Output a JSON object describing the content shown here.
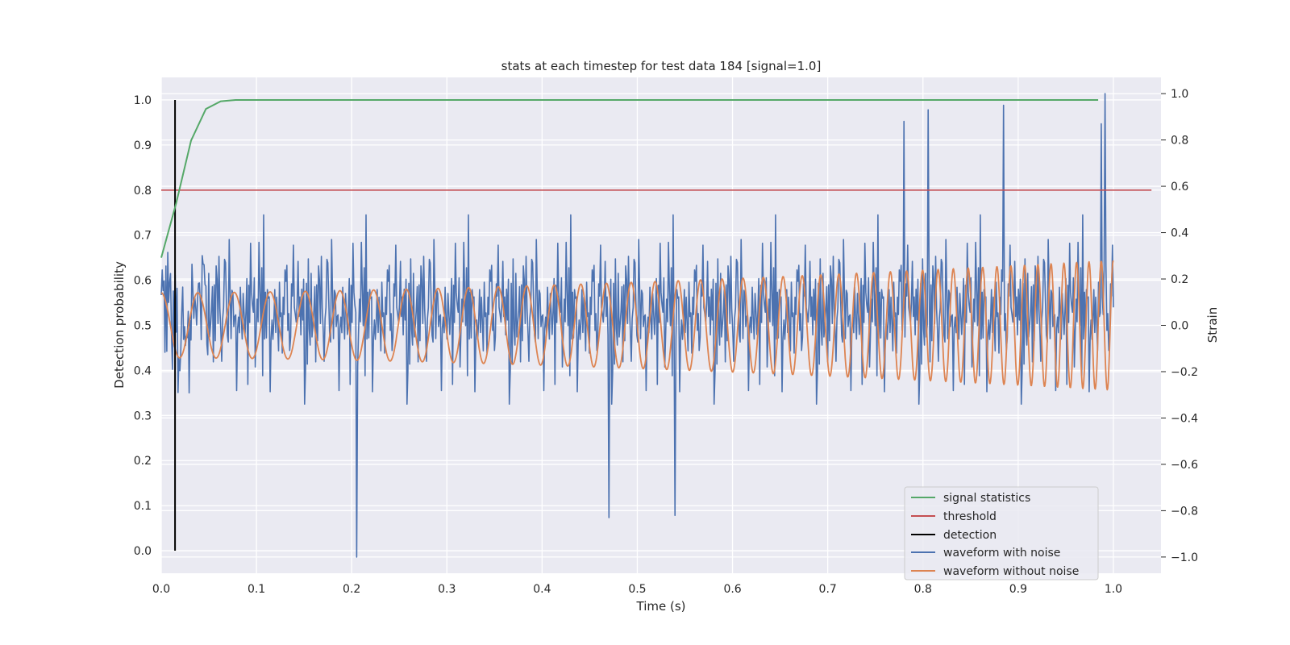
{
  "chart_data": {
    "type": "line",
    "title": "stats at each timestep for test data 184 [signal=1.0]",
    "xlabel": "Time (s)",
    "ylabel_left": "Detection probability",
    "ylabel_right": "Strain",
    "xlim": [
      0.0,
      1.05
    ],
    "ylim_left": [
      -0.05,
      1.05
    ],
    "ylim_right": [
      -1.07,
      1.07
    ],
    "xticks": [
      "0.0",
      "0.1",
      "0.2",
      "0.3",
      "0.4",
      "0.5",
      "0.6",
      "0.7",
      "0.8",
      "0.9",
      "1.0"
    ],
    "yticks_left": [
      "0.0",
      "0.1",
      "0.2",
      "0.3",
      "0.4",
      "0.5",
      "0.6",
      "0.7",
      "0.8",
      "0.9",
      "1.0"
    ],
    "yticks_right": [
      "−1.0",
      "−0.8",
      "−0.6",
      "−0.4",
      "−0.2",
      "0.0",
      "0.2",
      "0.4",
      "0.6",
      "0.8",
      "1.0"
    ],
    "grid": true,
    "legend_position": "lower-right",
    "legend": [
      "signal statistics",
      "threshold",
      "detection",
      "waveform with noise",
      "waveform without noise"
    ],
    "colors": {
      "signal_statistics": "#55a868",
      "threshold": "#c44e52",
      "detection": "#000000",
      "waveform_with_noise": "#4c72b0",
      "waveform_without_noise": "#dd8452",
      "plot_background": "#eaeaf2"
    },
    "series": [
      {
        "name": "signal statistics",
        "axis": "left",
        "x": [
          0.0,
          0.0156,
          0.0313,
          0.0469,
          0.0625,
          0.0781,
          0.1,
          0.2,
          0.3,
          0.4,
          0.5,
          0.6,
          0.7,
          0.8,
          0.9,
          0.984
        ],
        "y": [
          0.65,
          0.77,
          0.91,
          0.98,
          0.997,
          1.0,
          1.0,
          1.0,
          1.0,
          1.0,
          1.0,
          1.0,
          1.0,
          1.0,
          1.0,
          1.0
        ]
      },
      {
        "name": "threshold",
        "axis": "left",
        "x": [
          0.0,
          1.04
        ],
        "y": [
          0.8,
          0.8
        ]
      },
      {
        "name": "detection",
        "axis": "left",
        "x": [
          0.0145,
          0.0145
        ],
        "y": [
          0.0,
          1.0
        ]
      },
      {
        "name": "waveform with noise",
        "axis": "right",
        "description_of_values": "broadband noise, roughly ±0.3 strain with spikes up to 1.0 and down to −1.0",
        "x_range": [
          0.0,
          1.0
        ],
        "y_range": [
          -1.0,
          1.0
        ],
        "peaks": [
          {
            "x": 0.991,
            "y": 1.0
          },
          {
            "x": 0.205,
            "y": -1.0
          },
          {
            "x": 0.885,
            "y": 0.95
          },
          {
            "x": 0.805,
            "y": 0.93
          },
          {
            "x": 0.78,
            "y": 0.88
          },
          {
            "x": 0.987,
            "y": 0.87
          },
          {
            "x": 0.47,
            "y": -0.83
          },
          {
            "x": 0.54,
            "y": -0.82
          }
        ]
      },
      {
        "name": "waveform without noise",
        "axis": "right",
        "description_of_values": "chirp: sinusoid amplitude rising from ~0.14 to ~0.28, frequency rising from ~26 Hz to ~80 Hz",
        "amplitude_start": 0.14,
        "amplitude_end": 0.28,
        "frequency_start_hz": 26,
        "frequency_end_hz": 80,
        "x_range": [
          0.0,
          1.0
        ]
      }
    ]
  }
}
